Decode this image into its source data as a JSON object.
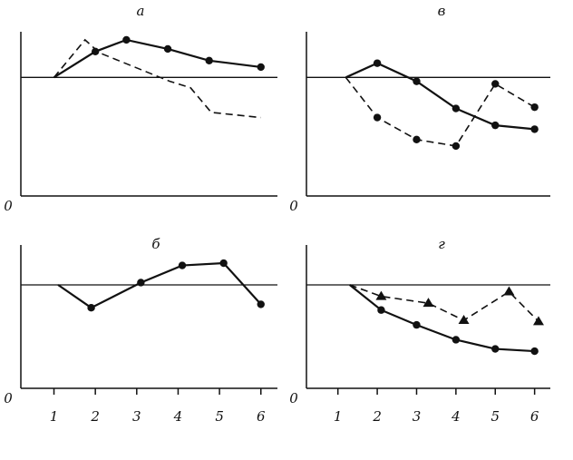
{
  "chart_data": [
    {
      "type": "line",
      "title": "а",
      "xlim": [
        0.2,
        6.4
      ],
      "ylim": [
        0,
        150
      ],
      "yticks": [
        0
      ],
      "reference_line": 100,
      "series": [
        {
          "color": "#111111",
          "dashed": true,
          "marker": "none",
          "x": [
            1,
            1.75,
            2.1,
            3.8,
            4.3,
            4.8,
            6
          ],
          "values": [
            100,
            129,
            119,
            97,
            92,
            73,
            69
          ]
        },
        {
          "color": "#111111",
          "dashed": false,
          "marker": "circle",
          "x": [
            1,
            2,
            2.75,
            3.75,
            4.75,
            6
          ],
          "values": [
            100,
            120,
            129,
            122,
            113,
            108
          ]
        }
      ]
    },
    {
      "type": "line",
      "title": "в",
      "xlim": [
        0.2,
        6.4
      ],
      "ylim": [
        0,
        150
      ],
      "yticks": [
        0
      ],
      "reference_line": 100,
      "series": [
        {
          "color": "#111111",
          "dashed": false,
          "marker": "circle",
          "x": [
            1.2,
            2,
            3,
            4,
            5,
            6
          ],
          "values": [
            100,
            111,
            97,
            76,
            63,
            60
          ]
        },
        {
          "color": "#111111",
          "dashed": true,
          "marker": "circle",
          "x": [
            1.2,
            2,
            3,
            4,
            5,
            6
          ],
          "values": [
            100,
            69,
            52,
            47,
            95,
            77
          ]
        }
      ]
    },
    {
      "type": "line",
      "title": "б",
      "xlim": [
        0.2,
        6.4
      ],
      "ylim": [
        0,
        150
      ],
      "yticks": [
        0
      ],
      "xticks": [
        1,
        2,
        3,
        4,
        5,
        6
      ],
      "reference_line": 100,
      "series": [
        {
          "color": "#111111",
          "dashed": false,
          "marker": "circle",
          "x": [
            1.1,
            1.9,
            3.1,
            4.1,
            5.1,
            6
          ],
          "values": [
            100,
            80,
            102,
            117,
            119,
            83
          ]
        }
      ]
    },
    {
      "type": "line",
      "title": "г",
      "xlim": [
        0.2,
        6.4
      ],
      "ylim": [
        0,
        150
      ],
      "yticks": [
        0
      ],
      "xticks": [
        1,
        2,
        3,
        4,
        5,
        6
      ],
      "reference_line": 100,
      "series": [
        {
          "color": "#111111",
          "dashed": false,
          "marker": "circle",
          "x": [
            1.3,
            2.1,
            3,
            4,
            5,
            6
          ],
          "values": [
            100,
            78,
            65,
            52,
            44,
            42
          ]
        },
        {
          "color": "#111111",
          "dashed": true,
          "marker": "triangle",
          "x": [
            1.3,
            2.1,
            3.3,
            4.2,
            5.35,
            6.1
          ],
          "values": [
            100,
            90,
            84,
            69,
            94,
            68
          ]
        }
      ]
    }
  ]
}
